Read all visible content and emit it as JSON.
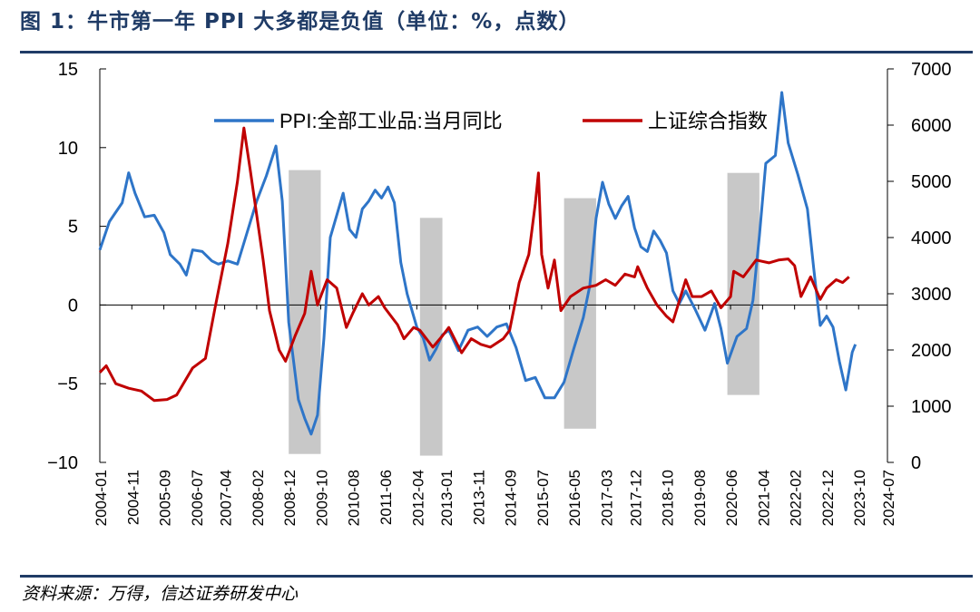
{
  "header": {
    "title": "图 1：牛市第一年 PPI 大多都是负值（单位：%，点数）"
  },
  "footer": {
    "source": "资料来源：万得，信达证券研发中心"
  },
  "colors": {
    "ppi": "#2e75c8",
    "index": "#c00000",
    "shade": "#c8c8c8",
    "accent": "#1f3b66"
  },
  "chart_data": {
    "type": "line",
    "title": "",
    "x_start": "2004-01",
    "x_end": "2024-07",
    "xticks": [
      "2004-01",
      "2004-11",
      "2005-09",
      "2006-07",
      "2007-04",
      "2008-02",
      "2008-12",
      "2009-10",
      "2010-08",
      "2011-06",
      "2012-04",
      "2013-01",
      "2013-11",
      "2014-09",
      "2015-07",
      "2016-05",
      "2017-03",
      "2017-12",
      "2018-10",
      "2019-08",
      "2020-06",
      "2021-04",
      "2022-02",
      "2022-12",
      "2023-10",
      "2024-07"
    ],
    "y_left": {
      "min": -10,
      "max": 15,
      "ticks": [
        "15",
        "10",
        "5",
        "0",
        "−5",
        "−10"
      ]
    },
    "y_right": {
      "min": 0,
      "max": 7000,
      "ticks": [
        "7000",
        "6000",
        "5000",
        "4000",
        "3000",
        "2000",
        "1000",
        "0"
      ]
    },
    "legend": [
      {
        "name": "PPI:全部工业品:当月同比",
        "color": "#2e75c8"
      },
      {
        "name": "上证综合指数",
        "color": "#c00000"
      }
    ],
    "shaded_regions": [
      {
        "start": "2008-12",
        "end": "2009-10",
        "top_right": 5200,
        "bottom_right": 150
      },
      {
        "start": "2012-05",
        "end": "2012-12",
        "top_right": 4350,
        "bottom_right": 120
      },
      {
        "start": "2016-02",
        "end": "2016-12",
        "top_right": 4700,
        "bottom_right": 600
      },
      {
        "start": "2020-05",
        "end": "2021-03",
        "top_right": 5150,
        "bottom_right": 1200
      }
    ],
    "series": [
      {
        "name": "PPI:全部工业品:当月同比",
        "axis": "left",
        "points": [
          [
            "2004-01",
            3.5
          ],
          [
            "2004-04",
            5.3
          ],
          [
            "2004-08",
            6.5
          ],
          [
            "2004-10",
            8.4
          ],
          [
            "2004-12",
            7.1
          ],
          [
            "2005-03",
            5.6
          ],
          [
            "2005-06",
            5.7
          ],
          [
            "2005-09",
            4.6
          ],
          [
            "2005-11",
            3.2
          ],
          [
            "2006-02",
            2.6
          ],
          [
            "2006-04",
            1.9
          ],
          [
            "2006-06",
            3.5
          ],
          [
            "2006-09",
            3.4
          ],
          [
            "2006-12",
            2.8
          ],
          [
            "2007-02",
            2.6
          ],
          [
            "2007-05",
            2.8
          ],
          [
            "2007-08",
            2.6
          ],
          [
            "2007-11",
            4.6
          ],
          [
            "2008-02",
            6.6
          ],
          [
            "2008-05",
            8.2
          ],
          [
            "2008-08",
            10.1
          ],
          [
            "2008-10",
            6.6
          ],
          [
            "2008-12",
            -1.1
          ],
          [
            "2009-03",
            -6.0
          ],
          [
            "2009-05",
            -7.2
          ],
          [
            "2009-07",
            -8.2
          ],
          [
            "2009-09",
            -7.0
          ],
          [
            "2009-11",
            -2.1
          ],
          [
            "2010-01",
            4.3
          ],
          [
            "2010-05",
            7.1
          ],
          [
            "2010-07",
            4.8
          ],
          [
            "2010-09",
            4.3
          ],
          [
            "2010-11",
            6.1
          ],
          [
            "2011-01",
            6.6
          ],
          [
            "2011-03",
            7.3
          ],
          [
            "2011-05",
            6.8
          ],
          [
            "2011-07",
            7.5
          ],
          [
            "2011-09",
            6.5
          ],
          [
            "2011-11",
            2.7
          ],
          [
            "2012-01",
            0.7
          ],
          [
            "2012-04",
            -1.4
          ],
          [
            "2012-06",
            -2.1
          ],
          [
            "2012-08",
            -3.5
          ],
          [
            "2012-10",
            -2.8
          ],
          [
            "2012-12",
            -1.9
          ],
          [
            "2013-02",
            -1.6
          ],
          [
            "2013-05",
            -2.9
          ],
          [
            "2013-08",
            -1.6
          ],
          [
            "2013-11",
            -1.4
          ],
          [
            "2014-02",
            -2.0
          ],
          [
            "2014-05",
            -1.4
          ],
          [
            "2014-08",
            -1.2
          ],
          [
            "2014-11",
            -2.7
          ],
          [
            "2015-02",
            -4.8
          ],
          [
            "2015-05",
            -4.6
          ],
          [
            "2015-08",
            -5.9
          ],
          [
            "2015-11",
            -5.9
          ],
          [
            "2016-02",
            -4.9
          ],
          [
            "2016-05",
            -2.8
          ],
          [
            "2016-08",
            -0.8
          ],
          [
            "2016-10",
            1.2
          ],
          [
            "2016-12",
            5.5
          ],
          [
            "2017-02",
            7.8
          ],
          [
            "2017-04",
            6.4
          ],
          [
            "2017-06",
            5.5
          ],
          [
            "2017-08",
            6.3
          ],
          [
            "2017-10",
            6.9
          ],
          [
            "2017-12",
            4.9
          ],
          [
            "2018-02",
            3.7
          ],
          [
            "2018-04",
            3.4
          ],
          [
            "2018-06",
            4.7
          ],
          [
            "2018-08",
            4.1
          ],
          [
            "2018-10",
            3.3
          ],
          [
            "2018-12",
            0.9
          ],
          [
            "2019-02",
            0.1
          ],
          [
            "2019-04",
            0.9
          ],
          [
            "2019-07",
            -0.3
          ],
          [
            "2019-10",
            -1.6
          ],
          [
            "2019-12",
            -0.5
          ],
          [
            "2020-01",
            0.1
          ],
          [
            "2020-03",
            -1.5
          ],
          [
            "2020-05",
            -3.7
          ],
          [
            "2020-08",
            -2.0
          ],
          [
            "2020-11",
            -1.5
          ],
          [
            "2021-01",
            0.3
          ],
          [
            "2021-03",
            4.4
          ],
          [
            "2021-05",
            9.0
          ],
          [
            "2021-08",
            9.5
          ],
          [
            "2021-10",
            13.5
          ],
          [
            "2021-12",
            10.3
          ],
          [
            "2022-03",
            8.3
          ],
          [
            "2022-06",
            6.1
          ],
          [
            "2022-08",
            2.3
          ],
          [
            "2022-10",
            -1.3
          ],
          [
            "2022-12",
            -0.7
          ],
          [
            "2023-02",
            -1.4
          ],
          [
            "2023-04",
            -3.6
          ],
          [
            "2023-06",
            -5.4
          ],
          [
            "2023-08",
            -3.0
          ],
          [
            "2023-09",
            -2.5
          ]
        ]
      },
      {
        "name": "上证综合指数",
        "axis": "right",
        "points": [
          [
            "2004-01",
            1600
          ],
          [
            "2004-03",
            1720
          ],
          [
            "2004-06",
            1400
          ],
          [
            "2004-10",
            1320
          ],
          [
            "2005-02",
            1270
          ],
          [
            "2005-06",
            1100
          ],
          [
            "2005-10",
            1120
          ],
          [
            "2006-01",
            1200
          ],
          [
            "2006-06",
            1680
          ],
          [
            "2006-10",
            1850
          ],
          [
            "2007-01",
            2750
          ],
          [
            "2007-05",
            3900
          ],
          [
            "2007-08",
            5000
          ],
          [
            "2007-10",
            5950
          ],
          [
            "2007-12",
            5200
          ],
          [
            "2008-02",
            4400
          ],
          [
            "2008-04",
            3600
          ],
          [
            "2008-06",
            2700
          ],
          [
            "2008-09",
            2000
          ],
          [
            "2008-11",
            1800
          ],
          [
            "2009-02",
            2250
          ],
          [
            "2009-05",
            2650
          ],
          [
            "2009-07",
            3400
          ],
          [
            "2009-09",
            2800
          ],
          [
            "2009-12",
            3250
          ],
          [
            "2010-03",
            3100
          ],
          [
            "2010-06",
            2400
          ],
          [
            "2010-08",
            2650
          ],
          [
            "2010-11",
            3000
          ],
          [
            "2011-01",
            2800
          ],
          [
            "2011-04",
            2950
          ],
          [
            "2011-06",
            2750
          ],
          [
            "2011-10",
            2450
          ],
          [
            "2011-12",
            2200
          ],
          [
            "2012-03",
            2400
          ],
          [
            "2012-05",
            2350
          ],
          [
            "2012-09",
            2050
          ],
          [
            "2012-12",
            2250
          ],
          [
            "2013-02",
            2400
          ],
          [
            "2013-06",
            1950
          ],
          [
            "2013-09",
            2200
          ],
          [
            "2013-12",
            2100
          ],
          [
            "2014-03",
            2050
          ],
          [
            "2014-07",
            2200
          ],
          [
            "2014-09",
            2350
          ],
          [
            "2014-12",
            3200
          ],
          [
            "2015-03",
            3700
          ],
          [
            "2015-05",
            4600
          ],
          [
            "2015-06",
            5150
          ],
          [
            "2015-07",
            3700
          ],
          [
            "2015-09",
            3100
          ],
          [
            "2015-11",
            3600
          ],
          [
            "2016-01",
            2700
          ],
          [
            "2016-04",
            2950
          ],
          [
            "2016-08",
            3100
          ],
          [
            "2016-12",
            3150
          ],
          [
            "2017-03",
            3250
          ],
          [
            "2017-06",
            3150
          ],
          [
            "2017-09",
            3350
          ],
          [
            "2017-12",
            3300
          ],
          [
            "2018-01",
            3480
          ],
          [
            "2018-04",
            3100
          ],
          [
            "2018-07",
            2800
          ],
          [
            "2018-10",
            2600
          ],
          [
            "2018-12",
            2500
          ],
          [
            "2019-04",
            3250
          ],
          [
            "2019-06",
            2950
          ],
          [
            "2019-09",
            2950
          ],
          [
            "2019-12",
            3050
          ],
          [
            "2020-03",
            2750
          ],
          [
            "2020-06",
            2950
          ],
          [
            "2020-07",
            3400
          ],
          [
            "2020-10",
            3300
          ],
          [
            "2021-02",
            3600
          ],
          [
            "2021-06",
            3550
          ],
          [
            "2021-09",
            3600
          ],
          [
            "2021-12",
            3620
          ],
          [
            "2022-02",
            3500
          ],
          [
            "2022-04",
            2950
          ],
          [
            "2022-07",
            3300
          ],
          [
            "2022-10",
            2900
          ],
          [
            "2022-12",
            3100
          ],
          [
            "2023-03",
            3250
          ],
          [
            "2023-05",
            3200
          ],
          [
            "2023-07",
            3300
          ]
        ]
      }
    ]
  }
}
